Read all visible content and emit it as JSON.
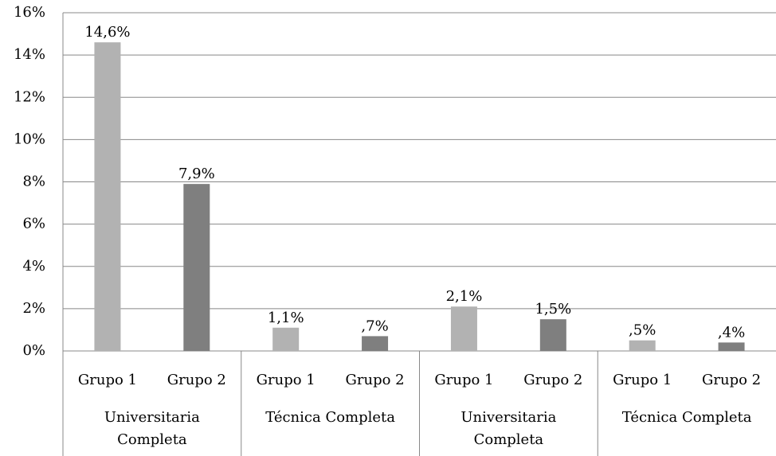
{
  "chart_data": {
    "type": "bar",
    "categories": [
      "Universitaria Completa",
      "Técnica Completa",
      "Universitaria Completa",
      "Técnica Completa"
    ],
    "series": [
      {
        "name": "Grupo 1",
        "color": "#b2b2b2",
        "values": [
          14.6,
          1.1,
          2.1,
          0.5
        ],
        "value_labels": [
          "14,6%",
          "1,1%",
          "2,1%",
          ",5%"
        ]
      },
      {
        "name": "Grupo 2",
        "color": "#7f7f7f",
        "values": [
          7.9,
          0.7,
          1.5,
          0.4
        ],
        "value_labels": [
          "7,9%",
          ",7%",
          "1,5%",
          ",4%"
        ]
      }
    ],
    "ylim": [
      0,
      16
    ],
    "yticks": [
      {
        "value": 0,
        "label": "0%"
      },
      {
        "value": 2,
        "label": "2%"
      },
      {
        "value": 4,
        "label": "4%"
      },
      {
        "value": 6,
        "label": "6%"
      },
      {
        "value": 8,
        "label": "8%"
      },
      {
        "value": 10,
        "label": "10%"
      },
      {
        "value": 12,
        "label": "12%"
      },
      {
        "value": 14,
        "label": "14%"
      },
      {
        "value": 16,
        "label": "16%"
      }
    ],
    "grid": true
  }
}
